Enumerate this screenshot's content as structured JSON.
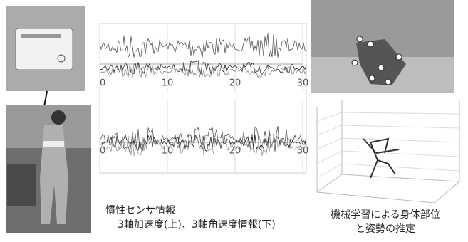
{
  "center": {
    "charts": [
      {
        "x_tick_labels": [
          "0",
          "10",
          "20",
          "30"
        ]
      },
      {
        "x_tick_labels": [
          "0",
          "10",
          "20",
          "30"
        ]
      }
    ],
    "caption": {
      "title": "慣性センサ情報",
      "subtitle": "3軸加速度(上)、3軸角速度情報(下)"
    }
  },
  "right": {
    "caption": [
      "機械学習による身体部位",
      "と姿勢の推定"
    ]
  }
}
